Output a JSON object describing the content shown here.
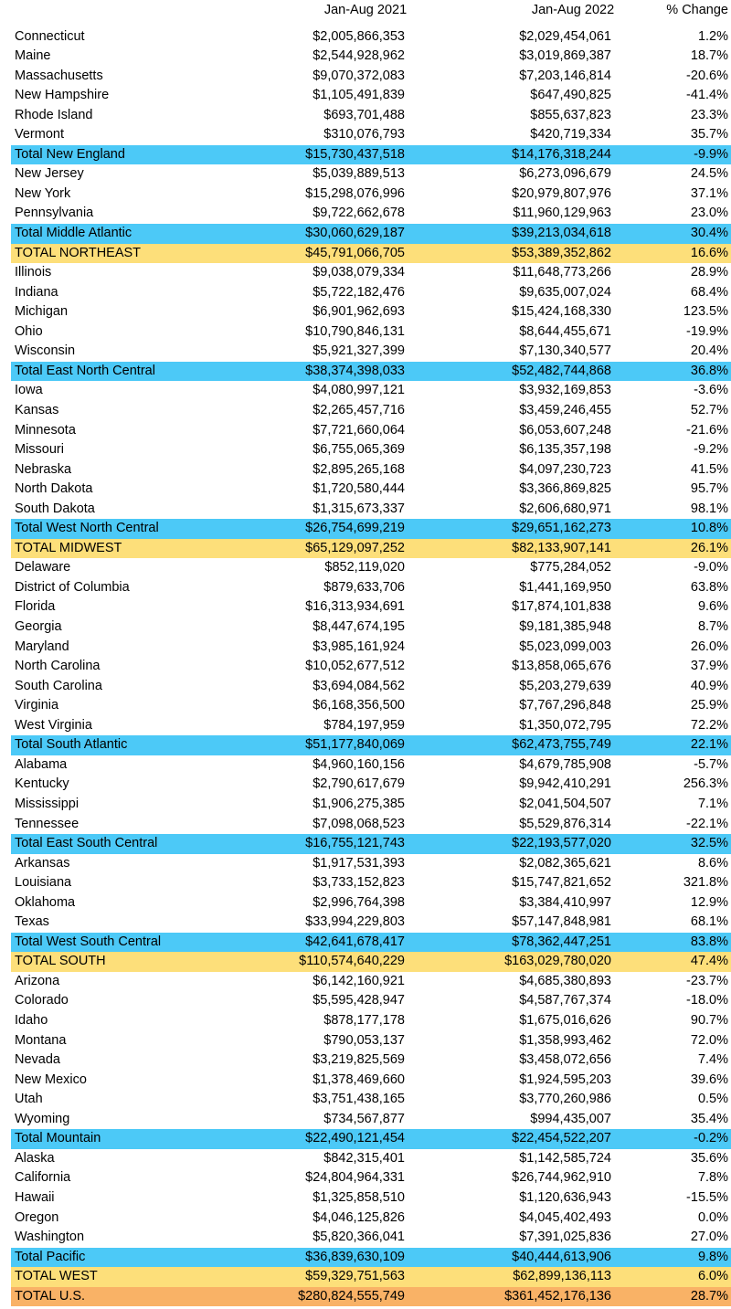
{
  "table": {
    "header": [
      "Jan-Aug 2021",
      "Jan-Aug 2022",
      "% Change"
    ],
    "rows": [
      {
        "cells": [
          "Connecticut",
          "$2,005,866,353",
          "$2,029,454,061",
          "1.2%"
        ]
      },
      {
        "cells": [
          "Maine",
          "$2,544,928,962",
          "$3,019,869,387",
          "18.7%"
        ]
      },
      {
        "cells": [
          "Massachusetts",
          "$9,070,372,083",
          "$7,203,146,814",
          "-20.6%"
        ]
      },
      {
        "cells": [
          "New Hampshire",
          "$1,105,491,839",
          "$647,490,825",
          "-41.4%"
        ]
      },
      {
        "cells": [
          "Rhode Island",
          "$693,701,488",
          "$855,637,823",
          "23.3%"
        ]
      },
      {
        "cells": [
          "Vermont",
          "$310,076,793",
          "$420,719,334",
          "35.7%"
        ]
      },
      {
        "cells": [
          "Total New England",
          "$15,730,437,518",
          "$14,176,318,244",
          "-9.9%"
        ],
        "color": "#4cc9f7"
      },
      {
        "cells": [
          "New Jersey",
          "$5,039,889,513",
          "$6,273,096,679",
          "24.5%"
        ]
      },
      {
        "cells": [
          "New York",
          "$15,298,076,996",
          "$20,979,807,976",
          "37.1%"
        ]
      },
      {
        "cells": [
          "Pennsylvania",
          "$9,722,662,678",
          "$11,960,129,963",
          "23.0%"
        ]
      },
      {
        "cells": [
          "Total Middle Atlantic",
          "$30,060,629,187",
          "$39,213,034,618",
          "30.4%"
        ],
        "color": "#4cc9f7"
      },
      {
        "cells": [
          "TOTAL NORTHEAST",
          "$45,791,066,705",
          "$53,389,352,862",
          "16.6%"
        ],
        "color": "#fddf7a"
      },
      {
        "cells": [
          "Illinois",
          "$9,038,079,334",
          "$11,648,773,266",
          "28.9%"
        ]
      },
      {
        "cells": [
          "Indiana",
          "$5,722,182,476",
          "$9,635,007,024",
          "68.4%"
        ]
      },
      {
        "cells": [
          "Michigan",
          "$6,901,962,693",
          "$15,424,168,330",
          "123.5%"
        ]
      },
      {
        "cells": [
          "Ohio",
          "$10,790,846,131",
          "$8,644,455,671",
          "-19.9%"
        ]
      },
      {
        "cells": [
          "Wisconsin",
          "$5,921,327,399",
          "$7,130,340,577",
          "20.4%"
        ]
      },
      {
        "cells": [
          "Total East North Central",
          "$38,374,398,033",
          "$52,482,744,868",
          "36.8%"
        ],
        "color": "#4cc9f7"
      },
      {
        "cells": [
          "Iowa",
          "$4,080,997,121",
          "$3,932,169,853",
          "-3.6%"
        ]
      },
      {
        "cells": [
          "Kansas",
          "$2,265,457,716",
          "$3,459,246,455",
          "52.7%"
        ]
      },
      {
        "cells": [
          "Minnesota",
          "$7,721,660,064",
          "$6,053,607,248",
          "-21.6%"
        ]
      },
      {
        "cells": [
          "Missouri",
          "$6,755,065,369",
          "$6,135,357,198",
          "-9.2%"
        ]
      },
      {
        "cells": [
          "Nebraska",
          "$2,895,265,168",
          "$4,097,230,723",
          "41.5%"
        ]
      },
      {
        "cells": [
          "North Dakota",
          "$1,720,580,444",
          "$3,366,869,825",
          "95.7%"
        ]
      },
      {
        "cells": [
          "South Dakota",
          "$1,315,673,337",
          "$2,606,680,971",
          "98.1%"
        ]
      },
      {
        "cells": [
          "Total West North Central",
          "$26,754,699,219",
          "$29,651,162,273",
          "10.8%"
        ],
        "color": "#4cc9f7"
      },
      {
        "cells": [
          "TOTAL MIDWEST",
          "$65,129,097,252",
          "$82,133,907,141",
          "26.1%"
        ],
        "color": "#fddf7a"
      },
      {
        "cells": [
          "Delaware",
          "$852,119,020",
          "$775,284,052",
          "-9.0%"
        ]
      },
      {
        "cells": [
          "District of Columbia",
          "$879,633,706",
          "$1,441,169,950",
          "63.8%"
        ]
      },
      {
        "cells": [
          "Florida",
          "$16,313,934,691",
          "$17,874,101,838",
          "9.6%"
        ]
      },
      {
        "cells": [
          "Georgia",
          "$8,447,674,195",
          "$9,181,385,948",
          "8.7%"
        ]
      },
      {
        "cells": [
          "Maryland",
          "$3,985,161,924",
          "$5,023,099,003",
          "26.0%"
        ]
      },
      {
        "cells": [
          "North Carolina",
          "$10,052,677,512",
          "$13,858,065,676",
          "37.9%"
        ]
      },
      {
        "cells": [
          "South Carolina",
          "$3,694,084,562",
          "$5,203,279,639",
          "40.9%"
        ]
      },
      {
        "cells": [
          "Virginia",
          "$6,168,356,500",
          "$7,767,296,848",
          "25.9%"
        ]
      },
      {
        "cells": [
          "West Virginia",
          "$784,197,959",
          "$1,350,072,795",
          "72.2%"
        ]
      },
      {
        "cells": [
          "Total South Atlantic",
          "$51,177,840,069",
          "$62,473,755,749",
          "22.1%"
        ],
        "color": "#4cc9f7"
      },
      {
        "cells": [
          "Alabama",
          "$4,960,160,156",
          "$4,679,785,908",
          "-5.7%"
        ]
      },
      {
        "cells": [
          "Kentucky",
          "$2,790,617,679",
          "$9,942,410,291",
          "256.3%"
        ]
      },
      {
        "cells": [
          "Mississippi",
          "$1,906,275,385",
          "$2,041,504,507",
          "7.1%"
        ]
      },
      {
        "cells": [
          "Tennessee",
          "$7,098,068,523",
          "$5,529,876,314",
          "-22.1%"
        ]
      },
      {
        "cells": [
          "Total East South Central",
          "$16,755,121,743",
          "$22,193,577,020",
          "32.5%"
        ],
        "color": "#4cc9f7"
      },
      {
        "cells": [
          "Arkansas",
          "$1,917,531,393",
          "$2,082,365,621",
          "8.6%"
        ]
      },
      {
        "cells": [
          "Louisiana",
          "$3,733,152,823",
          "$15,747,821,652",
          "321.8%"
        ]
      },
      {
        "cells": [
          "Oklahoma",
          "$2,996,764,398",
          "$3,384,410,997",
          "12.9%"
        ]
      },
      {
        "cells": [
          "Texas",
          "$33,994,229,803",
          "$57,147,848,981",
          "68.1%"
        ]
      },
      {
        "cells": [
          "Total West South Central",
          "$42,641,678,417",
          "$78,362,447,251",
          "83.8%"
        ],
        "color": "#4cc9f7"
      },
      {
        "cells": [
          "TOTAL SOUTH",
          "$110,574,640,229",
          "$163,029,780,020",
          "47.4%"
        ],
        "color": "#fddf7a"
      },
      {
        "cells": [
          "Arizona",
          "$6,142,160,921",
          "$4,685,380,893",
          "-23.7%"
        ]
      },
      {
        "cells": [
          "Colorado",
          "$5,595,428,947",
          "$4,587,767,374",
          "-18.0%"
        ]
      },
      {
        "cells": [
          "Idaho",
          "$878,177,178",
          "$1,675,016,626",
          "90.7%"
        ]
      },
      {
        "cells": [
          "Montana",
          "$790,053,137",
          "$1,358,993,462",
          "72.0%"
        ]
      },
      {
        "cells": [
          "Nevada",
          "$3,219,825,569",
          "$3,458,072,656",
          "7.4%"
        ]
      },
      {
        "cells": [
          "New Mexico",
          "$1,378,469,660",
          "$1,924,595,203",
          "39.6%"
        ]
      },
      {
        "cells": [
          "Utah",
          "$3,751,438,165",
          "$3,770,260,986",
          "0.5%"
        ]
      },
      {
        "cells": [
          "Wyoming",
          "$734,567,877",
          "$994,435,007",
          "35.4%"
        ]
      },
      {
        "cells": [
          "Total Mountain",
          "$22,490,121,454",
          "$22,454,522,207",
          "-0.2%"
        ],
        "color": "#4cc9f7"
      },
      {
        "cells": [
          "Alaska",
          "$842,315,401",
          "$1,142,585,724",
          "35.6%"
        ]
      },
      {
        "cells": [
          "California",
          "$24,804,964,331",
          "$26,744,962,910",
          "7.8%"
        ]
      },
      {
        "cells": [
          "Hawaii",
          "$1,325,858,510",
          "$1,120,636,943",
          "-15.5%"
        ]
      },
      {
        "cells": [
          "Oregon",
          "$4,046,125,826",
          "$4,045,402,493",
          "0.0%"
        ]
      },
      {
        "cells": [
          "Washington",
          "$5,820,366,041",
          "$7,391,025,836",
          "27.0%"
        ]
      },
      {
        "cells": [
          "Total Pacific",
          "$36,839,630,109",
          "$40,444,613,906",
          "9.8%"
        ],
        "color": "#4cc9f7"
      },
      {
        "cells": [
          "TOTAL WEST",
          "$59,329,751,563",
          "$62,899,136,113",
          "6.0%"
        ],
        "color": "#fddf7a"
      },
      {
        "cells": [
          "TOTAL U.S.",
          "$280,824,555,749",
          "$361,452,176,136",
          "28.7%"
        ],
        "color": "#f9b266"
      }
    ]
  }
}
